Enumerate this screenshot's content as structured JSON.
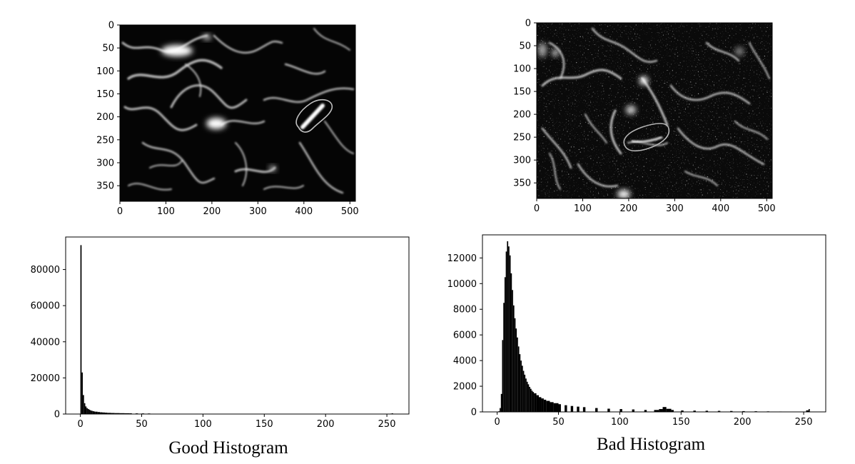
{
  "images": [
    {
      "xticks": [
        "0",
        "100",
        "200",
        "300",
        "400",
        "500"
      ],
      "xtick_values": [
        0,
        100,
        200,
        300,
        400,
        500
      ],
      "yticks": [
        "0",
        "50",
        "100",
        "150",
        "200",
        "250",
        "300",
        "350"
      ],
      "ytick_values": [
        0,
        50,
        100,
        150,
        200,
        250,
        300,
        350
      ],
      "xlim": [
        0,
        512
      ],
      "ylim": [
        0,
        384
      ],
      "content": "grayscale fluorescence micrograph of vessels with an outlined region of interest"
    },
    {
      "xticks": [
        "0",
        "100",
        "200",
        "300",
        "400",
        "500"
      ],
      "xtick_values": [
        0,
        100,
        200,
        300,
        400,
        500
      ],
      "yticks": [
        "0",
        "50",
        "100",
        "150",
        "200",
        "250",
        "300",
        "350"
      ],
      "ytick_values": [
        0,
        50,
        100,
        150,
        200,
        250,
        300,
        350
      ],
      "xlim": [
        0,
        512
      ],
      "ylim": [
        0,
        384
      ],
      "content": "grayscale noisy fluorescence micrograph of vessels with an outlined region of interest"
    }
  ],
  "chart_data": [
    {
      "type": "bar",
      "title": "Good  Histogram",
      "xlabel": "",
      "ylabel": "",
      "xlim": [
        -12,
        268
      ],
      "ylim": [
        0,
        98000
      ],
      "xticks": [
        "0",
        "50",
        "100",
        "150",
        "200",
        "250"
      ],
      "xtick_values": [
        0,
        50,
        100,
        150,
        200,
        250
      ],
      "yticks": [
        "0",
        "20000",
        "40000",
        "60000",
        "80000"
      ],
      "ytick_values": [
        0,
        20000,
        40000,
        60000,
        80000
      ],
      "x": [
        0,
        1,
        2,
        3,
        4,
        5,
        6,
        7,
        8,
        9,
        10,
        11,
        12,
        14,
        16,
        18,
        20,
        22,
        25,
        28,
        32,
        36,
        40,
        45,
        50,
        55,
        253,
        254
      ],
      "values": [
        93500,
        23000,
        10500,
        6000,
        4200,
        3300,
        2800,
        2400,
        2000,
        1800,
        1600,
        1400,
        1300,
        1100,
        950,
        850,
        750,
        650,
        580,
        520,
        470,
        430,
        400,
        360,
        330,
        300,
        250,
        400
      ],
      "color": "#000000"
    },
    {
      "type": "bar",
      "title": "Bad  Histogram",
      "xlabel": "",
      "ylabel": "",
      "xlim": [
        -12,
        268
      ],
      "ylim": [
        0,
        13800
      ],
      "xticks": [
        "0",
        "50",
        "100",
        "150",
        "200",
        "250"
      ],
      "xtick_values": [
        0,
        50,
        100,
        150,
        200,
        250
      ],
      "yticks": [
        "0",
        "2000",
        "4000",
        "6000",
        "8000",
        "10000",
        "12000"
      ],
      "ytick_values": [
        0,
        2000,
        4000,
        6000,
        8000,
        10000,
        12000
      ],
      "x": [
        0,
        1,
        2,
        3,
        4,
        5,
        6,
        7,
        8,
        9,
        10,
        11,
        12,
        13,
        14,
        15,
        16,
        17,
        18,
        19,
        20,
        21,
        22,
        23,
        24,
        25,
        26,
        27,
        28,
        29,
        30,
        32,
        34,
        36,
        38,
        40,
        43,
        46,
        50,
        55,
        60,
        65,
        70,
        80,
        90,
        100,
        110,
        120,
        128,
        132,
        135,
        138,
        142,
        150,
        160,
        170,
        180,
        190,
        200,
        210,
        220,
        230,
        240,
        250,
        252,
        254
      ],
      "values": [
        0,
        50,
        300,
        1400,
        5600,
        8500,
        10500,
        12500,
        13300,
        12900,
        12200,
        10800,
        9500,
        8300,
        7300,
        6500,
        5800,
        5100,
        4500,
        4000,
        3600,
        3200,
        2900,
        2600,
        2350,
        2150,
        1950,
        1800,
        1650,
        1550,
        1450,
        1300,
        1150,
        1050,
        950,
        860,
        760,
        680,
        600,
        520,
        460,
        410,
        370,
        300,
        250,
        220,
        190,
        150,
        150,
        220,
        380,
        240,
        150,
        110,
        100,
        90,
        80,
        70,
        60,
        50,
        40,
        30,
        25,
        20,
        120,
        220
      ],
      "color": "#000000"
    }
  ]
}
